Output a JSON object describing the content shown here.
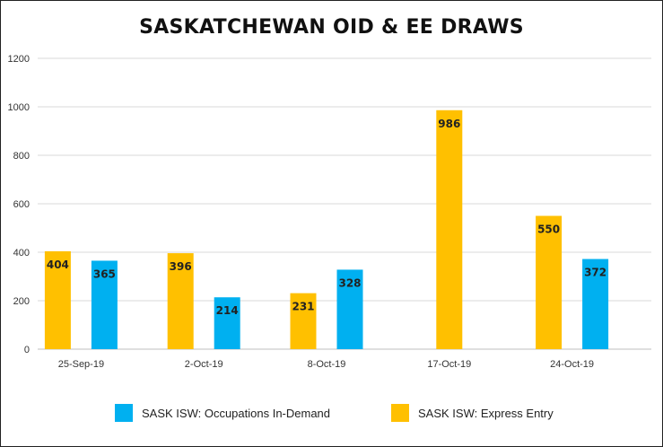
{
  "chart_data": {
    "type": "bar",
    "title": "SASKATCHEWAN OID & EE DRAWS",
    "xlabel": "",
    "ylabel": "",
    "ylim": [
      0,
      1200
    ],
    "yticks": [
      0,
      200,
      400,
      600,
      800,
      1000,
      1200
    ],
    "grid": true,
    "legend_position": "bottom",
    "categories": [
      "25-Sep-19",
      "2-Oct-19",
      "8-Oct-19",
      "17-Oct-19",
      "24-Oct-19"
    ],
    "series": [
      {
        "name": "SASK ISW: Express Entry",
        "color": "#FFC000",
        "values": [
          404,
          396,
          231,
          986,
          550
        ]
      },
      {
        "name": "SASK ISW: Occupations In-Demand",
        "color": "#00B0F0",
        "values": [
          365,
          214,
          328,
          null,
          372
        ]
      }
    ],
    "legend": [
      {
        "label": "SASK ISW: Occupations In-Demand",
        "color": "#00B0F0"
      },
      {
        "label": "SASK ISW: Express Entry",
        "color": "#FFC000"
      }
    ]
  }
}
